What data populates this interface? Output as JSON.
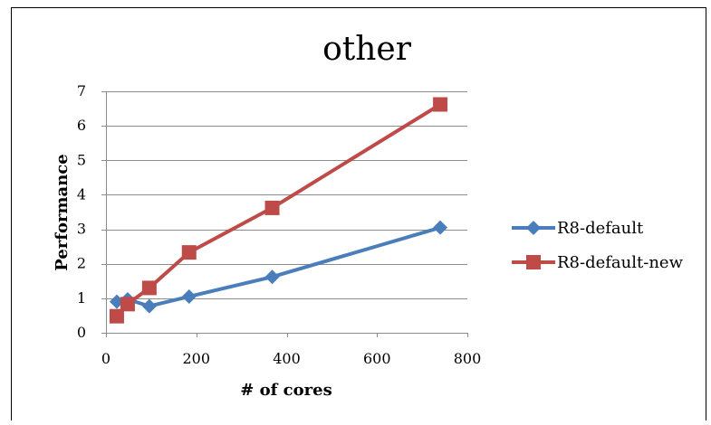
{
  "chart_data": {
    "type": "line",
    "title": "other",
    "xlabel": "# of cores",
    "ylabel": "Performance",
    "xlim": [
      0,
      800
    ],
    "ylim": [
      0,
      7
    ],
    "xticks": [
      0,
      200,
      400,
      600,
      800
    ],
    "yticks": [
      0,
      1,
      2,
      3,
      4,
      5,
      6,
      7
    ],
    "grid": "horizontal",
    "legend_position": "right",
    "series": [
      {
        "name": "R8-default",
        "color": "#4a7ebb",
        "marker": "diamond",
        "points": [
          [
            24,
            0.9
          ],
          [
            48,
            0.97
          ],
          [
            96,
            0.77
          ],
          [
            184,
            1.05
          ],
          [
            368,
            1.62
          ],
          [
            740,
            3.05
          ]
        ]
      },
      {
        "name": "R8-default-new",
        "color": "#be4b48",
        "marker": "square",
        "points": [
          [
            24,
            0.48
          ],
          [
            48,
            0.83
          ],
          [
            96,
            1.3
          ],
          [
            184,
            2.33
          ],
          [
            368,
            3.62
          ],
          [
            740,
            6.62
          ]
        ]
      }
    ]
  }
}
